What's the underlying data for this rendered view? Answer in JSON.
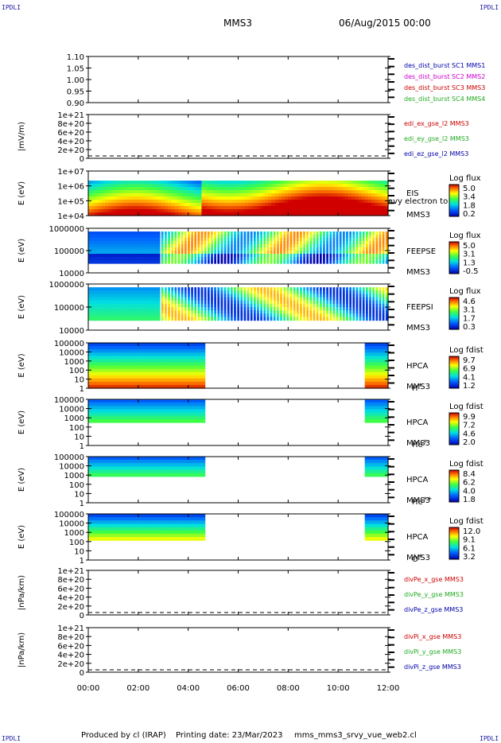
{
  "header": {
    "corner_tl": "IPDLI",
    "corner_tr": "IPDLI",
    "corner_bl": "IPDLI",
    "corner_br": "IPDLI",
    "spacecraft": "MMS3",
    "datetime": "06/Aug/2015 00:00"
  },
  "footer": {
    "produced_by": "Produced by cl (IRAP)",
    "printing_date": "Printing date: 23/Mar/2023",
    "script_name": "mms_mms3_srvy_vue_web2.cl"
  },
  "colors": {
    "red": "#cc0000",
    "green": "#22aa22",
    "blue": "#0000aa",
    "magenta": "#cc00cc"
  },
  "chart_data": [
    {
      "type": "line",
      "id": "p1",
      "yticks": [
        "1.10",
        "1.05",
        "1.00",
        "0.95",
        "0.90"
      ],
      "ylabel": "",
      "legend": [
        {
          "text": "des_dist_burst SC1 MMS1",
          "color": "blue"
        },
        {
          "text": "des_dist_burst SC2 MMS2",
          "color": "magenta"
        },
        {
          "text": "des_dist_burst SC3 MMS3",
          "color": "red"
        },
        {
          "text": "des_dist_burst SC4 MMS4",
          "color": "green"
        }
      ]
    },
    {
      "type": "line",
      "id": "p2",
      "yticks": [
        "1e+21",
        "8e+20",
        "6e+20",
        "4e+20",
        "2e+20",
        "0"
      ],
      "ylabel": "|mV/m)",
      "legend": [
        {
          "text": "edi_ex_gse_l2 MMS3",
          "color": "red"
        },
        {
          "text": "edi_ey_gse_l2 MMS3",
          "color": "green"
        },
        {
          "text": "edi_ez_gse_l2 MMS3",
          "color": "blue"
        }
      ]
    },
    {
      "type": "heatmap",
      "id": "p3",
      "yticks": [
        "1e+07",
        "1e+06",
        "1e+05",
        "1e+04"
      ],
      "ylabel": "E (eV)",
      "side": [
        "EIS",
        "avy electron to",
        "MMS3"
      ],
      "colorbar": {
        "title": "Log flux",
        "ticks": [
          "5.0",
          "3.4",
          "1.8",
          "0.2"
        ]
      }
    },
    {
      "type": "heatmap",
      "id": "p4",
      "yticks": [
        "1000000",
        "100000",
        "10000"
      ],
      "ylabel": "E (eV)",
      "side": [
        "FEEPSE",
        "MMS3"
      ],
      "colorbar": {
        "title": "Log flux",
        "ticks": [
          "5.0",
          "3.1",
          "1.3",
          "-0.5"
        ]
      }
    },
    {
      "type": "heatmap",
      "id": "p5",
      "yticks": [
        "1000000",
        "100000",
        "10000"
      ],
      "ylabel": "E (eV)",
      "side": [
        "FEEPSI",
        "MMS3"
      ],
      "colorbar": {
        "title": "Log flux",
        "ticks": [
          "4.6",
          "3.1",
          "1.7",
          "0.3"
        ]
      }
    },
    {
      "type": "heatmap",
      "id": "p6",
      "yticks": [
        "100000",
        "10000",
        "1000",
        "100",
        "10",
        "1"
      ],
      "ylabel": "E (eV)",
      "side": [
        "HPCA",
        "MMS3"
      ],
      "species": {
        "base": "H",
        "sup": "+"
      },
      "colorbar": {
        "title": "Log fdist",
        "ticks": [
          "9.7",
          "6.9",
          "4.1",
          "1.2"
        ]
      }
    },
    {
      "type": "heatmap",
      "id": "p7",
      "yticks": [
        "100000",
        "10000",
        "1000",
        "100",
        "10",
        "1"
      ],
      "ylabel": "E (eV)",
      "side": [
        "HPCA",
        "MMS3"
      ],
      "species": {
        "base": "He",
        "sup": "+"
      },
      "colorbar": {
        "title": "Log fdist",
        "ticks": [
          "9.9",
          "7.2",
          "4.6",
          "2.0"
        ]
      }
    },
    {
      "type": "heatmap",
      "id": "p8",
      "yticks": [
        "100000",
        "10000",
        "1000",
        "100",
        "10",
        "1"
      ],
      "ylabel": "E (eV)",
      "side": [
        "HPCA",
        "MMS3"
      ],
      "species": {
        "base": "He",
        "sup": "++"
      },
      "colorbar": {
        "title": "Log fdist",
        "ticks": [
          "8.4",
          "6.2",
          "4.0",
          "1.8"
        ]
      }
    },
    {
      "type": "heatmap",
      "id": "p9",
      "yticks": [
        "100000",
        "10000",
        "1000",
        "100",
        "10",
        "1"
      ],
      "ylabel": "E (eV)",
      "side": [
        "HPCA",
        "MMS3"
      ],
      "species": {
        "base": "O",
        "sup": "+"
      },
      "colorbar": {
        "title": "Log fdist",
        "ticks": [
          "12.0",
          "9.1",
          "6.1",
          "3.2"
        ]
      }
    },
    {
      "type": "line",
      "id": "p10",
      "yticks": [
        "1e+21",
        "8e+20",
        "6e+20",
        "4e+20",
        "2e+20",
        "0"
      ],
      "ylabel": "|nPa/km)",
      "legend": [
        {
          "text": "divPe_x_gse MMS3",
          "color": "red"
        },
        {
          "text": "divPe_y_gse MMS3",
          "color": "green"
        },
        {
          "text": "divPe_z_gse MMS3",
          "color": "blue"
        }
      ]
    },
    {
      "type": "line",
      "id": "p11",
      "yticks": [
        "1e+21",
        "8e+20",
        "6e+20",
        "4e+20",
        "2e+20",
        "0"
      ],
      "ylabel": "|nPa/km)",
      "legend": [
        {
          "text": "divPi_x_gse MMS3",
          "color": "red"
        },
        {
          "text": "divPi_y_gse MMS3",
          "color": "green"
        },
        {
          "text": "divPi_z_gse MMS3",
          "color": "blue"
        }
      ]
    }
  ],
  "xaxis": {
    "ticks": [
      "00:00",
      "02:00",
      "04:00",
      "06:00",
      "08:00",
      "10:00",
      "12:00"
    ]
  }
}
